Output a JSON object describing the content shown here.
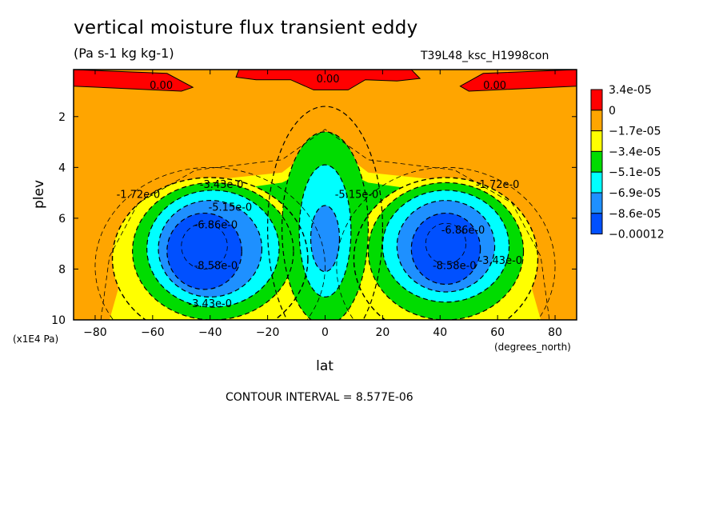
{
  "header": {
    "title": "vertical moisture flux transient eddy",
    "units": "(Pa s-1 kg kg-1)",
    "run_id": "T39L48_ksc_H1998con"
  },
  "footer": {
    "contour_interval": "CONTOUR INTERVAL = 8.577E-06"
  },
  "colors": {
    "red": "#ff0000",
    "orange": "#ffa500",
    "yellow": "#ffff00",
    "green": "#00dc00",
    "cyan": "#00ffff",
    "midblue": "#1e90ff",
    "blue": "#0050ff"
  },
  "chart_data": {
    "type": "contour",
    "xlabel": "lat",
    "ylabel": "plev",
    "x_units": "(degrees_north)",
    "y_units": "(x1E4 Pa)",
    "xlim": [
      -87.5,
      87.5
    ],
    "ylim": [
      10,
      0.15
    ],
    "y_inverted": true,
    "x_ticks": [
      -80,
      -60,
      -40,
      -20,
      0,
      20,
      40,
      60,
      80
    ],
    "y_ticks": [
      2,
      4,
      6,
      8,
      10
    ],
    "colorbar": {
      "levels": [
        "3.4e-05",
        "0",
        "-1.7e-05",
        "-3.4e-05",
        "-5.1e-05",
        "-6.9e-05",
        "-8.6e-05",
        "-0.00012"
      ],
      "colors": [
        "#ff0000",
        "#ffa500",
        "#ffff00",
        "#00dc00",
        "#00ffff",
        "#1e90ff",
        "#0050ff"
      ]
    },
    "contour_labels": [
      {
        "text": "0.00",
        "x": -57,
        "y": 0.9
      },
      {
        "text": "0.00",
        "x": 1,
        "y": 0.65
      },
      {
        "text": "0.00",
        "x": 59,
        "y": 0.9
      },
      {
        "text": "-1.72e-0",
        "x": -65,
        "y": 5.2
      },
      {
        "text": "-3.43e-0",
        "x": -36,
        "y": 4.8
      },
      {
        "text": "-5.15e-0",
        "x": -33,
        "y": 5.7
      },
      {
        "text": "-6.86e-0",
        "x": -38,
        "y": 6.4
      },
      {
        "text": "-8.58e-0",
        "x": -38,
        "y": 8.0
      },
      {
        "text": "-3.43e-0",
        "x": -40,
        "y": 9.5
      },
      {
        "text": "-5.15e-0",
        "x": 11,
        "y": 5.2
      },
      {
        "text": "-1.72e-0",
        "x": 60,
        "y": 4.8
      },
      {
        "text": "-6.86e-0",
        "x": 48,
        "y": 6.6
      },
      {
        "text": "-8.58e-0",
        "x": 45,
        "y": 8.0
      },
      {
        "text": "-3.43e-0",
        "x": 61,
        "y": 7.8
      }
    ]
  }
}
